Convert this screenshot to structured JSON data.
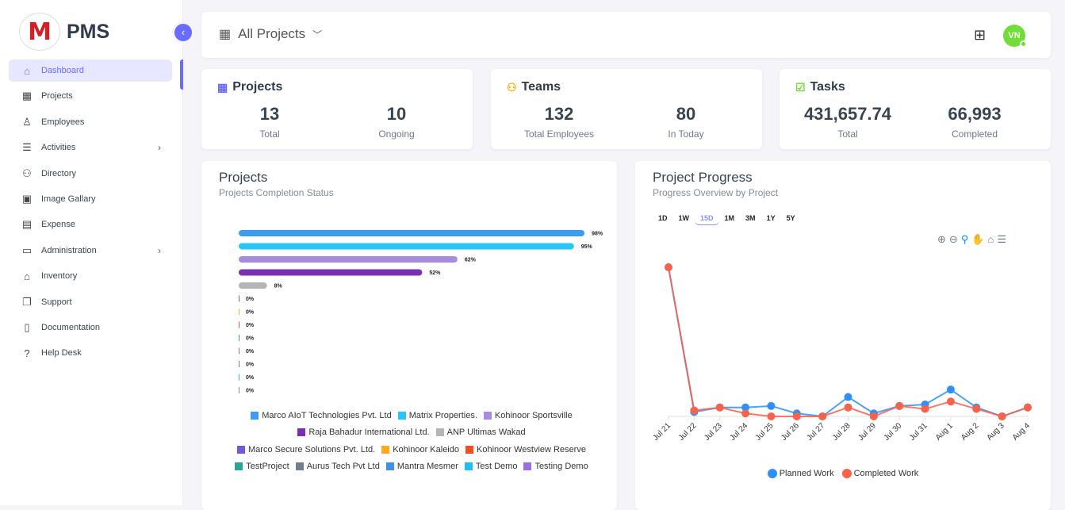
{
  "sidebar": {
    "logo_text": "M",
    "brand": "PMS",
    "collapse_icon": "chevron-left-icon",
    "items": [
      {
        "label": "Dashboard",
        "icon": "home-icon",
        "glyph": "⌂",
        "active": true
      },
      {
        "label": "Projects",
        "icon": "building-icon",
        "glyph": "▦"
      },
      {
        "label": "Employees",
        "icon": "user-icon",
        "glyph": "♙"
      },
      {
        "label": "Activities",
        "icon": "list-icon",
        "glyph": "☰",
        "submenu": true
      },
      {
        "label": "Directory",
        "icon": "users-icon",
        "glyph": "⚇"
      },
      {
        "label": "Image Gallary",
        "icon": "image-gallery-icon",
        "glyph": "▣"
      },
      {
        "label": "Expense",
        "icon": "receipt-icon",
        "glyph": "▤"
      },
      {
        "label": "Administration",
        "icon": "archive-icon",
        "glyph": "▭",
        "submenu": true
      },
      {
        "label": "Inventory",
        "icon": "store-icon",
        "glyph": "⌂"
      },
      {
        "label": "Support",
        "icon": "copy-icon",
        "glyph": "❐"
      },
      {
        "label": "Documentation",
        "icon": "book-icon",
        "glyph": "▯"
      },
      {
        "label": "Help Desk",
        "icon": "question-icon",
        "glyph": "?"
      }
    ]
  },
  "header": {
    "title": "All Projects",
    "avatar": "VN"
  },
  "stats": [
    {
      "title": "Projects",
      "icon_color": "#696cff",
      "values": [
        {
          "value": "13",
          "label": "Total"
        },
        {
          "value": "10",
          "label": "Ongoing"
        }
      ]
    },
    {
      "title": "Teams",
      "icon_color": "#ffab00",
      "values": [
        {
          "value": "132",
          "label": "Total Employees"
        },
        {
          "value": "80",
          "label": "In Today"
        }
      ]
    },
    {
      "title": "Tasks",
      "icon_color": "#71dd37",
      "values": [
        {
          "value": "431,657.74",
          "label": "Total"
        },
        {
          "value": "66,993",
          "label": "Completed"
        }
      ]
    }
  ],
  "projects_card": {
    "title": "Projects",
    "subtitle": "Projects Completion Status"
  },
  "progress_card": {
    "title": "Project Progress",
    "subtitle": "Progress Overview by Project",
    "ranges": [
      "1D",
      "1W",
      "15D",
      "1M",
      "3M",
      "1Y",
      "5Y"
    ],
    "selected_range": "15D"
  },
  "chart_data": [
    {
      "type": "bar",
      "orientation": "horizontal",
      "value_suffix": "%",
      "categories": [
        "Marco AIoT Technologies Pvt. Ltd",
        "Matrix Properties.",
        "Kohinoor Sportsville",
        "Raja Bahadur International Ltd.",
        "ANP Ultimas Wakad",
        "Marco Secure Solutions Pvt. Ltd.",
        "Kohinoor Kaleido",
        "Kohinoor Westview Reserve",
        "TestProject",
        "Aurus Tech Pvt Ltd",
        "Mantra Mesmer",
        "Test Demo",
        "Testing Demo"
      ],
      "values": [
        98,
        95,
        62,
        52,
        8,
        0,
        0,
        0,
        0,
        0,
        0,
        0,
        0
      ],
      "colors": [
        "#3d9bf5",
        "#26c6f9",
        "#a78be0",
        "#7b2fb5",
        "#b5b5b5",
        "#6c5dd3",
        "#ffa91f",
        "#f44e1b",
        "#26a69a",
        "#6e7f8d",
        "#3b8ff5",
        "#1fbdf5",
        "#9c6fe0"
      ],
      "legend": "bottom",
      "grid": false
    },
    {
      "type": "line",
      "x": [
        "Jul 21",
        "Jul 22",
        "Jul 23",
        "Jul 24",
        "Jul 25",
        "Jul 26",
        "Jul 27",
        "Jul 28",
        "Jul 29",
        "Jul 30",
        "Jul 31",
        "Aug 1",
        "Aug 2",
        "Aug 3",
        "Aug 4"
      ],
      "series": [
        {
          "name": "Planned Work",
          "color": "#2e90fa",
          "values": [
            100,
            3,
            6,
            6,
            7,
            2,
            0,
            13,
            2,
            7,
            8,
            18,
            6,
            0,
            6
          ]
        },
        {
          "name": "Completed Work",
          "color": "#f8624a",
          "values": [
            100,
            4,
            6,
            2,
            0,
            0,
            0,
            6,
            0,
            7,
            5,
            10,
            5,
            0,
            6
          ]
        }
      ],
      "legend": "bottom",
      "grid": false,
      "y_axis_shown": false
    }
  ]
}
